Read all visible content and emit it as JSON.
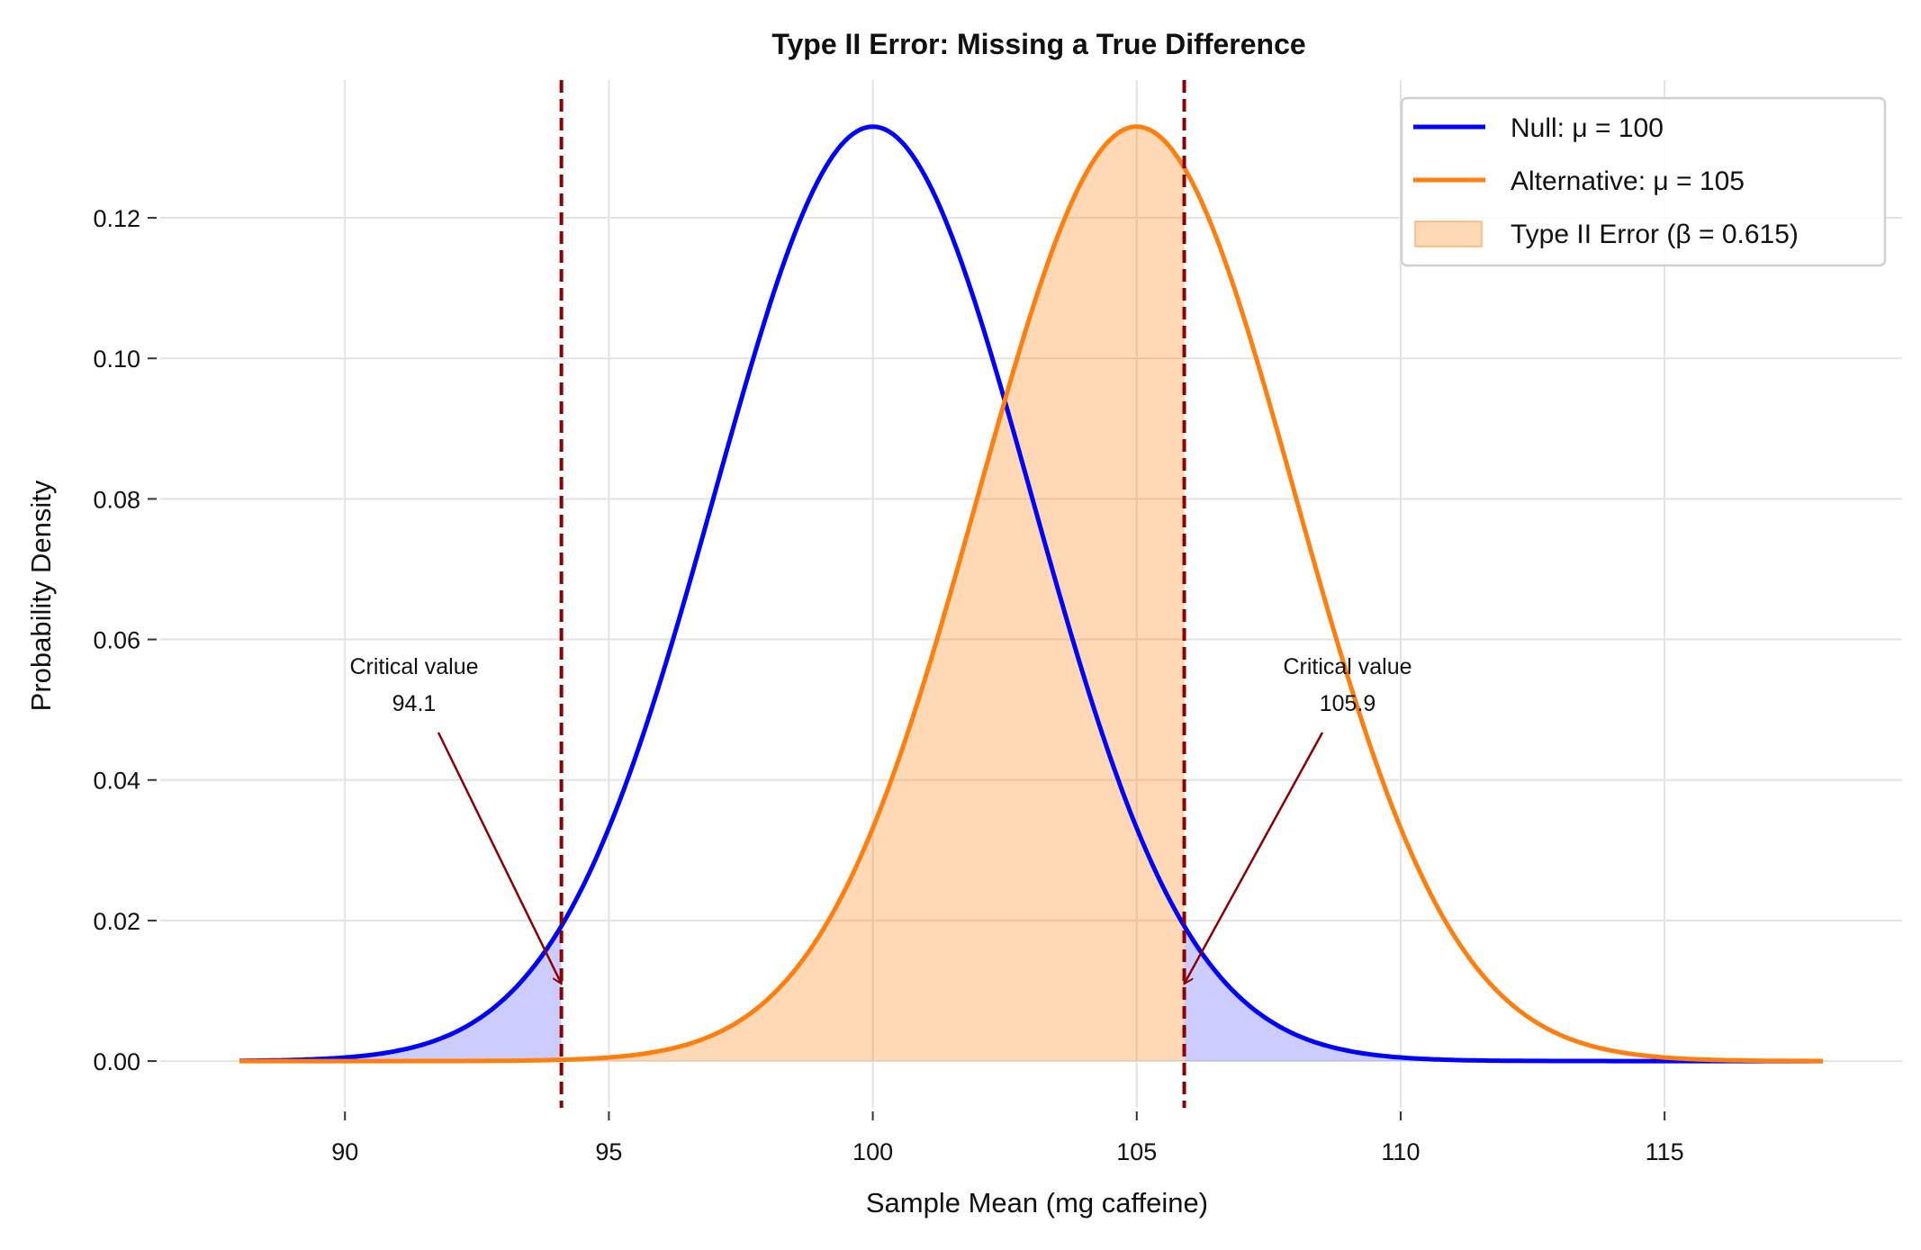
{
  "chart_data": {
    "type": "line",
    "title": "Type II Error: Missing a True Difference",
    "xlabel": "Sample Mean (mg caffeine)",
    "ylabel": "Probability Density",
    "xlim": [
      86.5,
      119.5
    ],
    "ylim": [
      -0.00665,
      0.1396
    ],
    "x_range_plotted": [
      88,
      118
    ],
    "xticks": [
      90,
      95,
      100,
      105,
      110,
      115
    ],
    "xtick_labels": [
      "90",
      "95",
      "100",
      "105",
      "110",
      "115"
    ],
    "yticks": [
      0.0,
      0.02,
      0.04,
      0.06,
      0.08,
      0.1,
      0.12
    ],
    "ytick_labels": [
      "0.00",
      "0.02",
      "0.04",
      "0.06",
      "0.08",
      "0.10",
      "0.12"
    ],
    "grid": true,
    "legend_position": "top-right",
    "series": [
      {
        "name": "Null: μ = 100",
        "distribution": "normal",
        "mean": 100,
        "sd": 3.0,
        "color": "#0000ff"
      },
      {
        "name": "Alternative: μ = 105",
        "distribution": "normal",
        "mean": 105,
        "sd": 3.0,
        "color": "#ff7f0e"
      }
    ],
    "fills": [
      {
        "name": "Type II Error (β = 0.615)",
        "under": "Alternative: μ = 105",
        "from": 94.1,
        "to": 105.9,
        "color": "#ff7f0e",
        "opacity": 0.3
      },
      {
        "name": "null-rejection-tails",
        "under": "Null: μ = 100",
        "regions": [
          [
            88,
            94.1
          ],
          [
            105.9,
            118
          ]
        ],
        "color": "#0000ff",
        "opacity": 0.2
      }
    ],
    "critical_values": [
      94.1,
      105.9
    ],
    "critical_line_color": "#8b0000",
    "annotations": [
      {
        "line1": "Critical value",
        "line2": "94.1",
        "points_to": [
          94.1,
          0.011
        ]
      },
      {
        "line1": "Critical value",
        "line2": "105.9",
        "points_to": [
          105.9,
          0.011
        ]
      }
    ],
    "beta": 0.615
  }
}
